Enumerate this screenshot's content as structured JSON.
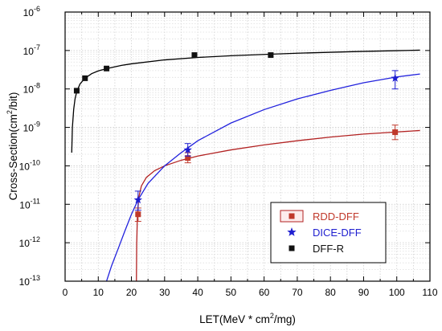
{
  "chart_data": {
    "type": "scatter",
    "title": "",
    "xlabel": {
      "prefix": "LET(MeV * cm",
      "sup": "2",
      "suffix": "/mg)"
    },
    "ylabel": {
      "prefix": "Cross-Section(cm",
      "sup": "2",
      "suffix": "/bit)"
    },
    "xlim": [
      0,
      110
    ],
    "ylim": [
      1e-13,
      1e-06
    ],
    "y_scale": "log",
    "grid": true,
    "legend_position": "bottom-right",
    "x_ticks": [
      0,
      10,
      20,
      30,
      40,
      50,
      60,
      70,
      80,
      90,
      100,
      110
    ],
    "y_ticks": [
      {
        "value": 1e-13,
        "base": "10",
        "exp": "-13"
      },
      {
        "value": 1e-12,
        "base": "10",
        "exp": "-12"
      },
      {
        "value": 1e-11,
        "base": "10",
        "exp": "-11"
      },
      {
        "value": 1e-10,
        "base": "10",
        "exp": "-10"
      },
      {
        "value": 1e-09,
        "base": "10",
        "exp": "-9"
      },
      {
        "value": 1e-08,
        "base": "10",
        "exp": "-8"
      },
      {
        "value": 1e-07,
        "base": "10",
        "exp": "-7"
      },
      {
        "value": 1e-06,
        "base": "10",
        "exp": "-6"
      }
    ],
    "series": [
      {
        "name": "RDD-DFF",
        "marker": "square",
        "color": "#c0392b",
        "line_color": "#b22222",
        "points": [
          {
            "x": 22,
            "y": 5.5e-12,
            "err_lo": 3.6e-12,
            "err_hi": 8e-12
          },
          {
            "x": 37,
            "y": 1.6e-10,
            "err_lo": 1.2e-10,
            "err_hi": 2.2e-10
          },
          {
            "x": 99.5,
            "y": 7.5e-10,
            "err_lo": 4.8e-10,
            "err_hi": 1.15e-09
          }
        ],
        "fit_curve": [
          [
            21.5,
            1e-13
          ],
          [
            21.6,
            1e-12
          ],
          [
            21.8,
            5e-12
          ],
          [
            22.2,
            1.5e-11
          ],
          [
            23,
            3e-11
          ],
          [
            24.5,
            5e-11
          ],
          [
            27,
            7.5e-11
          ],
          [
            30,
            1e-10
          ],
          [
            35,
            1.4e-10
          ],
          [
            40,
            1.8e-10
          ],
          [
            50,
            2.6e-10
          ],
          [
            60,
            3.5e-10
          ],
          [
            70,
            4.5e-10
          ],
          [
            80,
            5.6e-10
          ],
          [
            90,
            6.7e-10
          ],
          [
            100,
            7.6e-10
          ],
          [
            107,
            8.3e-10
          ]
        ]
      },
      {
        "name": "DICE-DFF",
        "marker": "star",
        "color": "#1f1fd0",
        "line_color": "#2222dd",
        "points": [
          {
            "x": 22,
            "y": 1.3e-11,
            "err_lo": 7e-12,
            "err_hi": 2.2e-11
          },
          {
            "x": 37,
            "y": 2.6e-10,
            "err_lo": 1.8e-10,
            "err_hi": 3.8e-10
          },
          {
            "x": 99.5,
            "y": 1.9e-08,
            "err_lo": 1e-08,
            "err_hi": 3e-08
          }
        ],
        "fit_curve": [
          [
            12.5,
            1e-13
          ],
          [
            14,
            2.5e-13
          ],
          [
            16,
            7e-13
          ],
          [
            18,
            2e-12
          ],
          [
            20,
            5.5e-12
          ],
          [
            22,
            1.3e-11
          ],
          [
            25,
            3.5e-11
          ],
          [
            30,
            1e-10
          ],
          [
            35,
            2.2e-10
          ],
          [
            40,
            4.5e-10
          ],
          [
            50,
            1.3e-09
          ],
          [
            60,
            2.9e-09
          ],
          [
            70,
            5.5e-09
          ],
          [
            80,
            9.2e-09
          ],
          [
            90,
            1.45e-08
          ],
          [
            100,
            2.05e-08
          ],
          [
            107,
            2.45e-08
          ]
        ]
      },
      {
        "name": "DFF-R",
        "marker": "square",
        "color": "#111111",
        "line_color": "#000000",
        "points": [
          {
            "x": 3.5,
            "y": 9e-09
          },
          {
            "x": 6,
            "y": 1.9e-08
          },
          {
            "x": 12.5,
            "y": 3.4e-08
          },
          {
            "x": 39,
            "y": 7.6e-08
          },
          {
            "x": 62,
            "y": 7.6e-08
          }
        ],
        "fit_curve": [
          [
            2,
            2.2e-10
          ],
          [
            2.2,
            1e-09
          ],
          [
            2.6,
            3e-09
          ],
          [
            3,
            5.5e-09
          ],
          [
            3.5,
            8.5e-09
          ],
          [
            4.5,
            1.35e-08
          ],
          [
            6,
            1.9e-08
          ],
          [
            8,
            2.5e-08
          ],
          [
            10,
            2.95e-08
          ],
          [
            13,
            3.45e-08
          ],
          [
            17,
            4.1e-08
          ],
          [
            20,
            4.5e-08
          ],
          [
            30,
            5.7e-08
          ],
          [
            40,
            6.6e-08
          ],
          [
            50,
            7.3e-08
          ],
          [
            60,
            7.9e-08
          ],
          [
            70,
            8.5e-08
          ],
          [
            80,
            9e-08
          ],
          [
            90,
            9.5e-08
          ],
          [
            100,
            9.9e-08
          ],
          [
            107,
            1.02e-07
          ]
        ]
      }
    ]
  }
}
